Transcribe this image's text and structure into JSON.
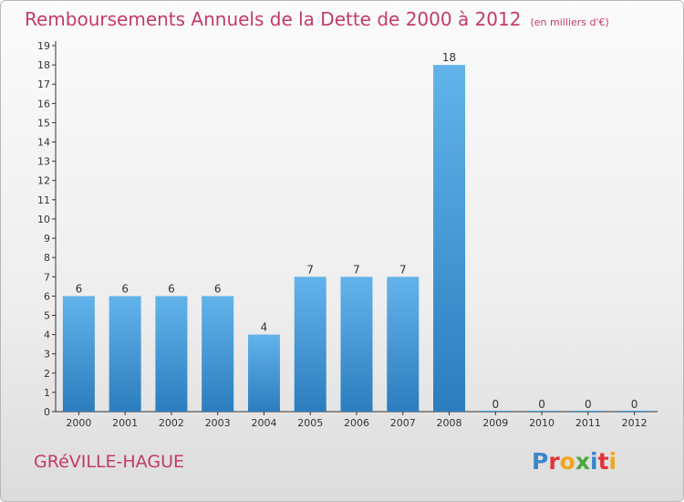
{
  "header": {
    "title": "Remboursements Annuels de la Dette de 2000 à 2012",
    "unit": "(en milliers d'€)"
  },
  "footer": {
    "place": "GRéVILLE-HAGUE",
    "logo_letters": [
      "P",
      "r",
      "o",
      "x",
      "i",
      "t",
      "i"
    ],
    "logo_colors": [
      "#3a86c8",
      "#e0343a",
      "#f2a51a",
      "#4aa83c",
      "#3a86c8",
      "#e0343a",
      "#f2a51a"
    ]
  },
  "colors": {
    "title": "#c33a6a",
    "bar_top": "#63b3eb",
    "bar_bottom": "#2c7dbe",
    "axis": "#333333",
    "text": "#333333"
  },
  "chart_data": {
    "type": "bar",
    "title": "Remboursements Annuels de la Dette de 2000 à 2012",
    "subtitle": "(en milliers d'€)",
    "xlabel": "",
    "ylabel": "",
    "categories": [
      "2000",
      "2001",
      "2002",
      "2003",
      "2004",
      "2005",
      "2006",
      "2007",
      "2008",
      "2009",
      "2010",
      "2011",
      "2012"
    ],
    "values": [
      6,
      6,
      6,
      6,
      4,
      7,
      7,
      7,
      18,
      0,
      0,
      0,
      0
    ],
    "ylim": [
      0,
      19
    ],
    "yticks": [
      0,
      1,
      2,
      3,
      4,
      5,
      6,
      7,
      8,
      9,
      10,
      11,
      12,
      13,
      14,
      15,
      16,
      17,
      18,
      19
    ],
    "grid": false,
    "legend": "none"
  }
}
